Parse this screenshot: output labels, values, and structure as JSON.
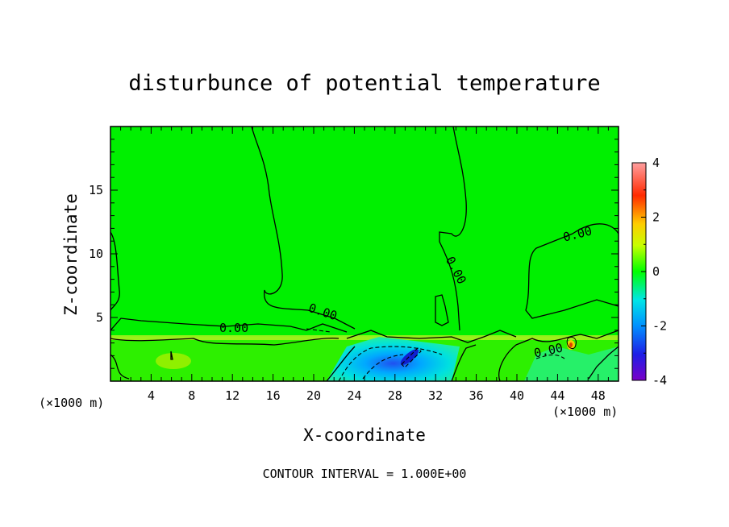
{
  "chart_data": {
    "type": "heatmap",
    "title": "disturbunce of potential temperature",
    "xlabel": "X-coordinate",
    "ylabel": "Z-coordinate",
    "x_unit_left": "(×1000 m)",
    "x_unit_right": "(×1000 m)",
    "xlim": [
      0,
      50
    ],
    "ylim": [
      0,
      20
    ],
    "x_ticks": [
      4,
      8,
      12,
      16,
      20,
      24,
      28,
      32,
      36,
      40,
      44,
      48
    ],
    "y_ticks": [
      5,
      10,
      15
    ],
    "colorbar": {
      "range": [
        -4,
        4
      ],
      "ticks": [
        -4,
        -2,
        0,
        2,
        4
      ],
      "colors": [
        "#7a00c8",
        "#1e1ee6",
        "#0090ff",
        "#00e6e6",
        "#00ff00",
        "#c8ff00",
        "#ffcc00",
        "#ff2a00",
        "#ff9fa0"
      ]
    },
    "contour_labels": [
      "0.00",
      "0.00",
      "0.00",
      "0.00",
      "0.00"
    ],
    "footer": "CONTOUR INTERVAL = 1.000E+00"
  }
}
